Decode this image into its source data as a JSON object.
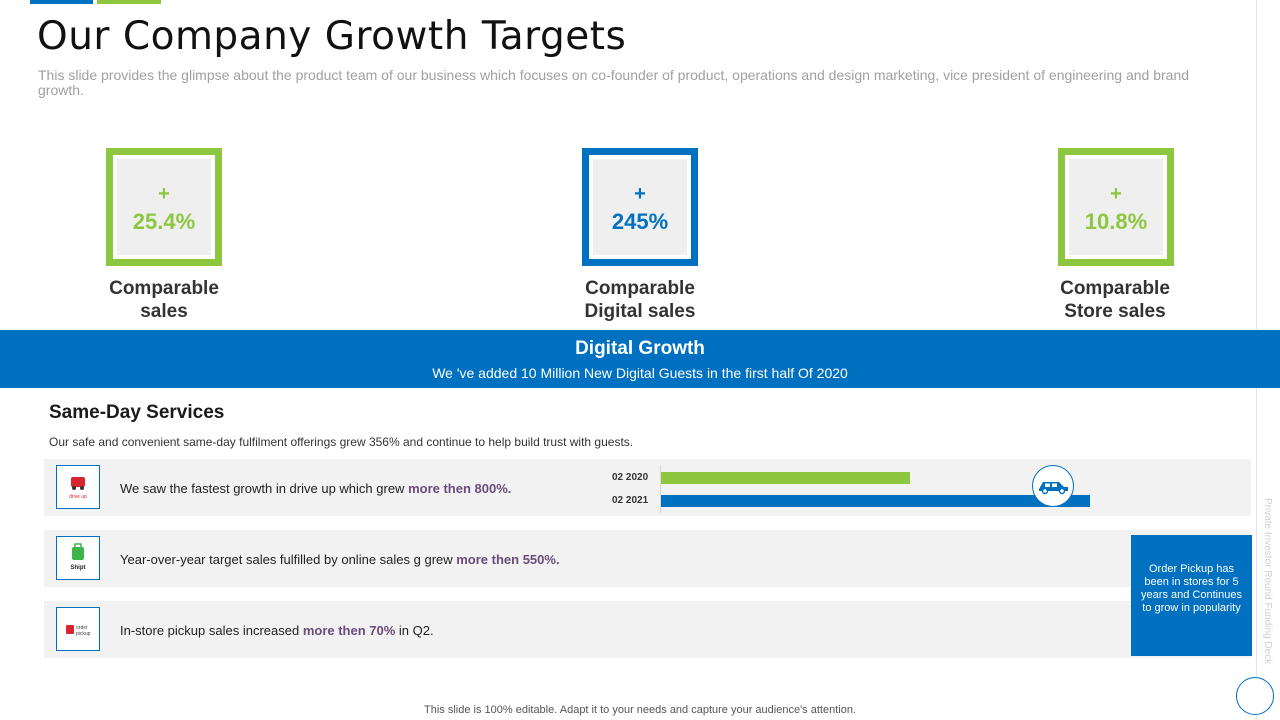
{
  "title": "Our Company Growth Targets",
  "subtitle": "This slide provides the glimpse about the product team of our business which focuses on co-founder of product, operations and design marketing, vice president of engineering and brand growth.",
  "colors": {
    "blue": "#0070C0",
    "green": "#8DC63F",
    "highlight": "#6a4c7c"
  },
  "kpis": [
    {
      "plus": "+",
      "value": "25.4%",
      "label_line1": "Comparable",
      "label_line2": "sales",
      "color": "green"
    },
    {
      "plus": "+",
      "value": "245%",
      "label_line1": "Comparable",
      "label_line2": "Digital sales",
      "color": "blue"
    },
    {
      "plus": "+",
      "value": "10.8%",
      "label_line1": "Comparable",
      "label_line2": "Store sales",
      "color": "green"
    }
  ],
  "banner": {
    "title": "Digital Growth",
    "subtitle": "We 've added 10 Million New Digital Guests in the first half Of 2020"
  },
  "services": {
    "title": "Same-Day Services",
    "description": "Our safe and convenient  same-day fulfilment offerings grew 356% and continue to help build trust with guests.",
    "rows": [
      {
        "icon": "drive-up-icon",
        "text_before": "We saw the fastest growth in drive  up which grew ",
        "highlight": "more then 800%.",
        "text_after": ""
      },
      {
        "icon": "shipt-icon",
        "text_before": "Year-over-year  target sales fulfilled  by online sales g grew ",
        "highlight": "more then 550%.",
        "text_after": ""
      },
      {
        "icon": "order-pickup-icon",
        "text_before": "In-store  pickup sales increased ",
        "highlight": "more then 70%",
        "text_after": "  in Q2."
      }
    ]
  },
  "chart_data": {
    "type": "bar",
    "orientation": "horizontal",
    "categories": [
      "02 2020",
      "02 2021"
    ],
    "values": [
      0.58,
      1.0
    ],
    "colors": [
      "#8DC63F",
      "#0070C0"
    ],
    "xlim": [
      0,
      1
    ]
  },
  "side_note": "Order Pickup has been in stores for 5 years and Continues to grow in popularity",
  "vertical_text": "Private Investor Round Funding Deck",
  "footer": "This slide is 100% editable. Adapt it to your needs and capture your audience's attention."
}
